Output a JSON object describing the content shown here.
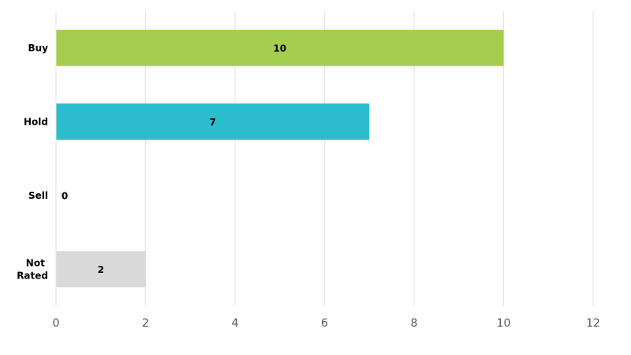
{
  "chart_data": {
    "type": "hbar",
    "categories": [
      "Buy",
      "Hold",
      "Sell",
      "Not Rated"
    ],
    "values": [
      10,
      7,
      0,
      2
    ],
    "colors": [
      "#a5cd50",
      "#2bbdcd",
      "#a5a5a5",
      "#d9d9d9"
    ],
    "xlim": [
      0,
      12
    ],
    "xticks": [
      0,
      2,
      4,
      6,
      8,
      10,
      12
    ],
    "grid": true
  }
}
